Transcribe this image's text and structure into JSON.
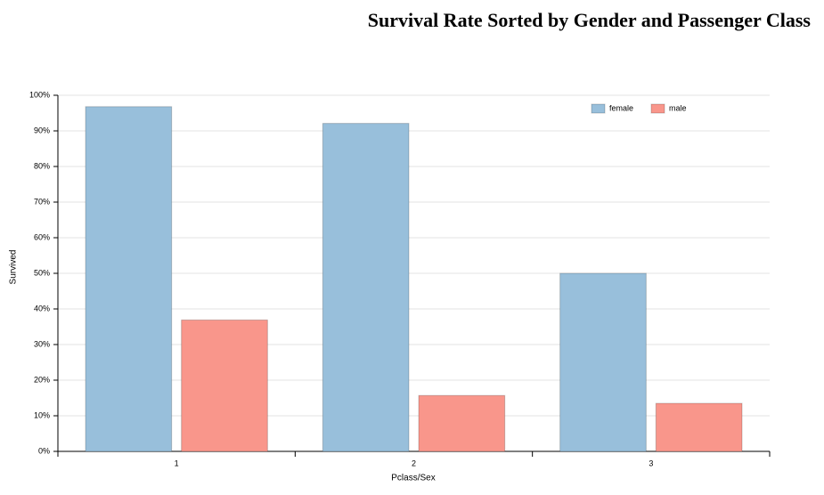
{
  "chart_data": {
    "type": "bar",
    "title": "Survival Rate Sorted by Gender and Passenger Class",
    "x_label": "Pclass/Sex",
    "y_label": "Survived",
    "categories": [
      "1",
      "2",
      "3"
    ],
    "series": [
      {
        "name": "female",
        "color": "#98bfdb",
        "values": [
          96.8,
          92.1,
          50.0
        ]
      },
      {
        "name": "male",
        "color": "#f9968b",
        "values": [
          36.9,
          15.7,
          13.5
        ]
      }
    ],
    "ylim": [
      0,
      100
    ],
    "yticks": [
      {
        "value": 0,
        "label": "0%"
      },
      {
        "value": 10,
        "label": "10%"
      },
      {
        "value": 20,
        "label": "20%"
      },
      {
        "value": 30,
        "label": "30%"
      },
      {
        "value": 40,
        "label": "40%"
      },
      {
        "value": 50,
        "label": "50%"
      },
      {
        "value": 60,
        "label": "60%"
      },
      {
        "value": 70,
        "label": "70%"
      },
      {
        "value": 80,
        "label": "80%"
      },
      {
        "value": 90,
        "label": "90%"
      },
      {
        "value": 100,
        "label": "100%"
      }
    ],
    "grid": true,
    "legend": "top-right"
  }
}
